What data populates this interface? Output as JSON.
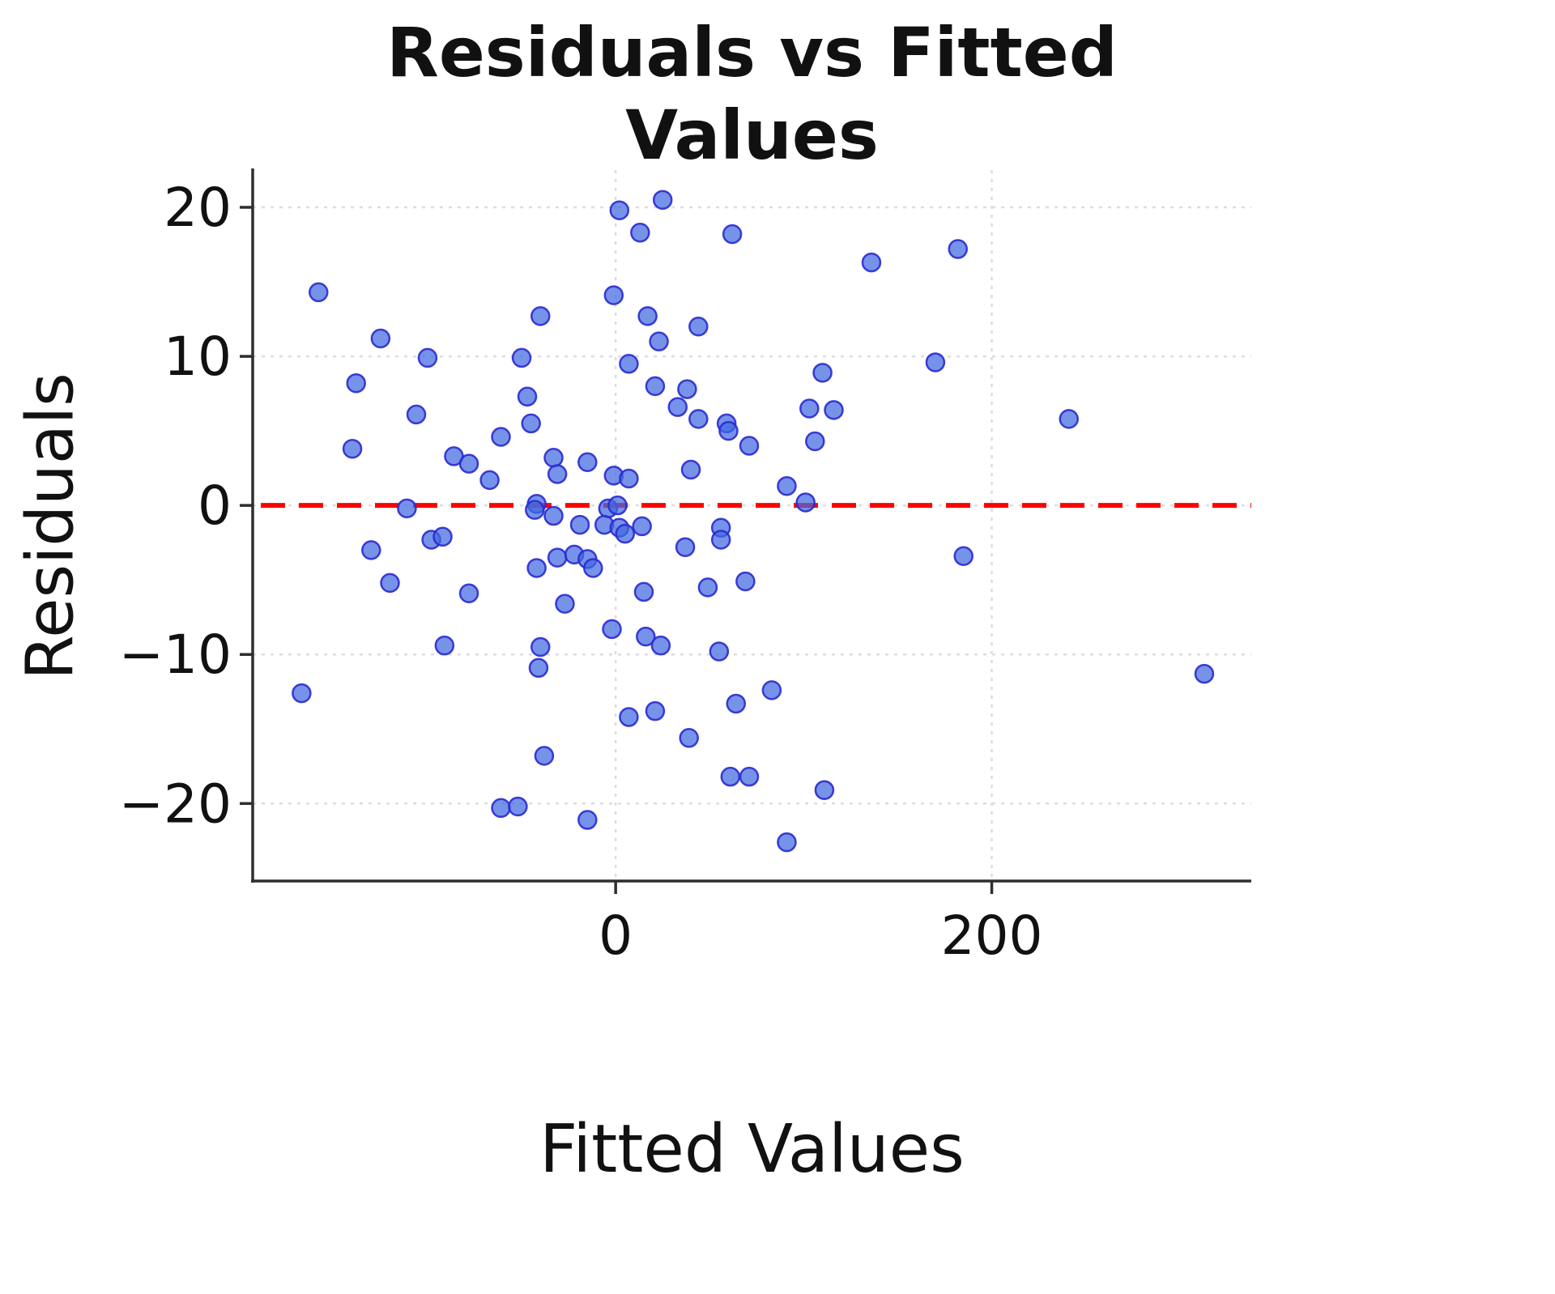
{
  "figure": {
    "title_lines": [
      "Residuals vs Fitted",
      "Values"
    ],
    "xlabel": "Fitted Values",
    "ylabel": "Residuals"
  },
  "chart_data": {
    "type": "scatter",
    "title": "Residuals vs Fitted Values",
    "xlabel": "Fitted Values",
    "ylabel": "Residuals",
    "xlim": [
      -193,
      338
    ],
    "ylim": [
      -25.2,
      22.5
    ],
    "xticks": [
      0,
      200
    ],
    "yticks": [
      -20,
      -10,
      0,
      10,
      20
    ],
    "grid": true,
    "legend": "none",
    "zero_line": {
      "y": 0,
      "color": "#ff0000",
      "style": "dashed"
    },
    "point_color": "#4169e1",
    "point_edge_color": "#2a2ad0",
    "points": [
      [
        25,
        20.5
      ],
      [
        2,
        19.8
      ],
      [
        13,
        18.3
      ],
      [
        62,
        18.2
      ],
      [
        182,
        17.2
      ],
      [
        136,
        16.3
      ],
      [
        -158,
        14.3
      ],
      [
        -1,
        14.1
      ],
      [
        -40,
        12.7
      ],
      [
        17,
        12.7
      ],
      [
        44,
        12.0
      ],
      [
        -125,
        11.2
      ],
      [
        23,
        11.0
      ],
      [
        -100,
        9.9
      ],
      [
        -50,
        9.9
      ],
      [
        170,
        9.6
      ],
      [
        7,
        9.5
      ],
      [
        110,
        8.9
      ],
      [
        -138,
        8.2
      ],
      [
        21,
        8.0
      ],
      [
        38,
        7.8
      ],
      [
        -47,
        7.3
      ],
      [
        33,
        6.6
      ],
      [
        116,
        6.4
      ],
      [
        103,
        6.5
      ],
      [
        -106,
        6.1
      ],
      [
        44,
        5.8
      ],
      [
        241,
        5.8
      ],
      [
        -45,
        5.5
      ],
      [
        59,
        5.5
      ],
      [
        60,
        5.0
      ],
      [
        -61,
        4.6
      ],
      [
        106,
        4.3
      ],
      [
        -140,
        3.8
      ],
      [
        71,
        4.0
      ],
      [
        -86,
        3.3
      ],
      [
        -33,
        3.2
      ],
      [
        -15,
        2.9
      ],
      [
        -31,
        2.1
      ],
      [
        -1,
        2.0
      ],
      [
        40,
        2.4
      ],
      [
        -78,
        2.8
      ],
      [
        -67,
        1.7
      ],
      [
        91,
        1.3
      ],
      [
        7,
        1.8
      ],
      [
        -42,
        0.1
      ],
      [
        -43,
        -0.3
      ],
      [
        -4,
        -0.2
      ],
      [
        1,
        0.0
      ],
      [
        101,
        0.2
      ],
      [
        -111,
        -0.2
      ],
      [
        -33,
        -0.7
      ],
      [
        -6,
        -1.3
      ],
      [
        2,
        -1.5
      ],
      [
        5,
        -1.9
      ],
      [
        -19,
        -1.3
      ],
      [
        14,
        -1.4
      ],
      [
        56,
        -1.5
      ],
      [
        -98,
        -2.3
      ],
      [
        -92,
        -2.1
      ],
      [
        37,
        -2.8
      ],
      [
        56,
        -2.3
      ],
      [
        -130,
        -3.0
      ],
      [
        185,
        -3.4
      ],
      [
        -31,
        -3.5
      ],
      [
        -22,
        -3.3
      ],
      [
        -15,
        -3.6
      ],
      [
        -42,
        -4.2
      ],
      [
        -12,
        -4.2
      ],
      [
        -120,
        -5.2
      ],
      [
        49,
        -5.5
      ],
      [
        15,
        -5.8
      ],
      [
        69,
        -5.1
      ],
      [
        -78,
        -5.9
      ],
      [
        -27,
        -6.6
      ],
      [
        -2,
        -8.3
      ],
      [
        16,
        -8.8
      ],
      [
        -91,
        -9.4
      ],
      [
        24,
        -9.4
      ],
      [
        55,
        -9.8
      ],
      [
        -40,
        -9.5
      ],
      [
        -41,
        -10.9
      ],
      [
        313,
        -11.3
      ],
      [
        -167,
        -12.6
      ],
      [
        83,
        -12.4
      ],
      [
        64,
        -13.3
      ],
      [
        21,
        -13.8
      ],
      [
        7,
        -14.2
      ],
      [
        39,
        -15.6
      ],
      [
        -38,
        -16.8
      ],
      [
        61,
        -18.2
      ],
      [
        71,
        -18.2
      ],
      [
        111,
        -19.1
      ],
      [
        -61,
        -20.3
      ],
      [
        -52,
        -20.2
      ],
      [
        -15,
        -21.1
      ],
      [
        91,
        -22.6
      ]
    ]
  }
}
